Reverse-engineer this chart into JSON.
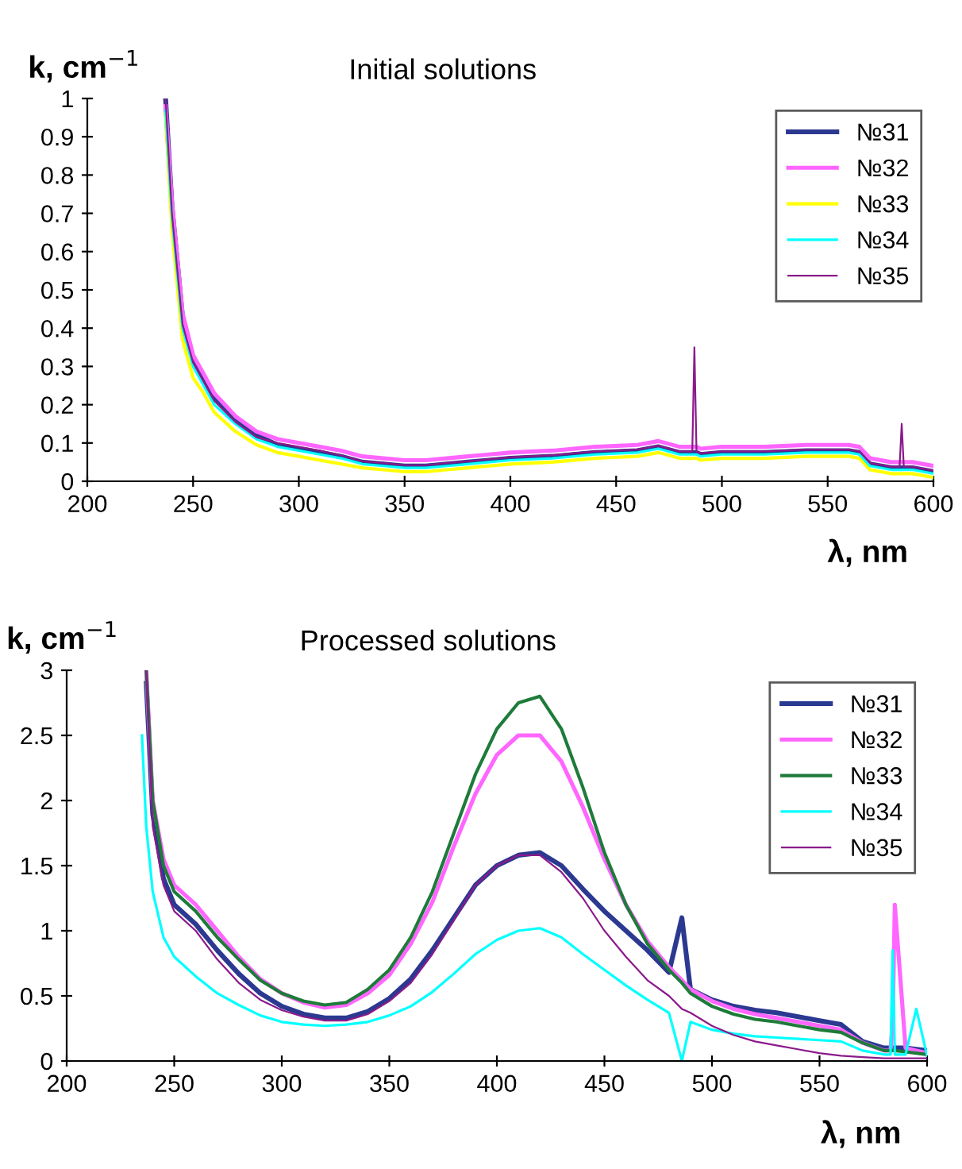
{
  "chart_data": [
    {
      "type": "line",
      "title": "Initial solutions",
      "xlabel": "λ, nm",
      "ylabel": "k, cm$^{−1}$",
      "xlim": [
        200,
        600
      ],
      "ylim": [
        0,
        1
      ],
      "xticks": [
        200,
        250,
        300,
        350,
        400,
        450,
        500,
        550,
        600
      ],
      "yticks": [
        0,
        0.1,
        0.2,
        0.3,
        0.4,
        0.5,
        0.6,
        0.7,
        0.8,
        0.9,
        1
      ],
      "grid": false,
      "legend": "top right",
      "marker": "none",
      "line_style": "solid",
      "x": [
        237,
        240,
        245,
        250,
        255,
        260,
        270,
        280,
        290,
        300,
        310,
        320,
        330,
        340,
        350,
        360,
        370,
        380,
        390,
        400,
        420,
        440,
        460,
        470,
        480,
        486,
        487,
        488,
        490,
        500,
        520,
        540,
        560,
        565,
        570,
        580,
        584,
        585,
        586,
        590,
        600
      ],
      "series": [
        {
          "name": "№31",
          "color": "#2b3990",
          "values": [
            1.0,
            0.72,
            0.43,
            0.32,
            0.27,
            0.22,
            0.16,
            0.12,
            0.095,
            0.085,
            0.075,
            0.065,
            0.05,
            0.045,
            0.04,
            0.04,
            0.045,
            0.05,
            0.055,
            0.06,
            0.065,
            0.075,
            0.08,
            0.09,
            0.075,
            0.075,
            0.075,
            0.075,
            0.07,
            0.075,
            0.075,
            0.08,
            0.08,
            0.075,
            0.045,
            0.035,
            0.035,
            0.035,
            0.035,
            0.035,
            0.025
          ]
        },
        {
          "name": "№32",
          "color": "#ff66ff",
          "values": [
            0.98,
            0.73,
            0.44,
            0.33,
            0.28,
            0.23,
            0.17,
            0.13,
            0.11,
            0.1,
            0.09,
            0.08,
            0.065,
            0.06,
            0.055,
            0.055,
            0.06,
            0.065,
            0.07,
            0.075,
            0.08,
            0.09,
            0.095,
            0.105,
            0.09,
            0.09,
            0.09,
            0.09,
            0.085,
            0.09,
            0.09,
            0.095,
            0.095,
            0.09,
            0.06,
            0.05,
            0.05,
            0.05,
            0.05,
            0.05,
            0.04
          ]
        },
        {
          "name": "№33",
          "color": "#ffff00",
          "values": [
            0.96,
            0.66,
            0.37,
            0.27,
            0.23,
            0.18,
            0.13,
            0.095,
            0.075,
            0.065,
            0.055,
            0.045,
            0.035,
            0.03,
            0.025,
            0.025,
            0.03,
            0.035,
            0.04,
            0.045,
            0.05,
            0.06,
            0.065,
            0.075,
            0.06,
            0.06,
            0.06,
            0.06,
            0.055,
            0.06,
            0.06,
            0.065,
            0.065,
            0.06,
            0.03,
            0.02,
            0.02,
            0.02,
            0.02,
            0.02,
            0.01
          ]
        },
        {
          "name": "№34",
          "color": "#00ffff",
          "values": [
            0.97,
            0.69,
            0.4,
            0.3,
            0.25,
            0.2,
            0.15,
            0.11,
            0.09,
            0.08,
            0.07,
            0.06,
            0.045,
            0.04,
            0.035,
            0.035,
            0.04,
            0.045,
            0.05,
            0.055,
            0.06,
            0.07,
            0.075,
            0.085,
            0.07,
            0.07,
            0.07,
            0.07,
            0.065,
            0.07,
            0.07,
            0.075,
            0.075,
            0.07,
            0.04,
            0.03,
            0.03,
            0.03,
            0.03,
            0.03,
            0.02
          ]
        },
        {
          "name": "№35",
          "color": "#8b1a8b",
          "values": [
            1.0,
            0.7,
            0.41,
            0.31,
            0.26,
            0.21,
            0.155,
            0.115,
            0.1,
            0.09,
            0.08,
            0.068,
            0.052,
            0.048,
            0.042,
            0.042,
            0.048,
            0.052,
            0.058,
            0.063,
            0.068,
            0.078,
            0.083,
            0.093,
            0.078,
            0.078,
            0.35,
            0.078,
            0.073,
            0.078,
            0.078,
            0.083,
            0.083,
            0.078,
            0.048,
            0.038,
            0.038,
            0.15,
            0.038,
            0.038,
            0.028
          ]
        }
      ]
    },
    {
      "type": "line",
      "title": "Processed solutions",
      "xlabel": "λ, nm",
      "ylabel": "k, cm$^{−1}$",
      "xlim": [
        200,
        600
      ],
      "ylim": [
        0,
        3
      ],
      "xticks": [
        200,
        250,
        300,
        350,
        400,
        450,
        500,
        550,
        600
      ],
      "yticks": [
        0,
        0.5,
        1,
        1.5,
        2,
        2.5,
        3
      ],
      "grid": false,
      "legend": "top right",
      "marker": "none",
      "line_style": "solid",
      "x": [
        235,
        237,
        240,
        245,
        250,
        260,
        270,
        280,
        290,
        300,
        310,
        320,
        330,
        340,
        350,
        360,
        370,
        380,
        390,
        400,
        410,
        420,
        430,
        440,
        450,
        460,
        470,
        480,
        486,
        490,
        500,
        510,
        520,
        530,
        540,
        550,
        560,
        570,
        580,
        583,
        584,
        585,
        590,
        595,
        600
      ],
      "series": [
        {
          "name": "№31",
          "color": "#2b3990",
          "values": [
            null,
            2.9,
            1.9,
            1.4,
            1.2,
            1.05,
            0.85,
            0.67,
            0.52,
            0.42,
            0.36,
            0.33,
            0.33,
            0.38,
            0.48,
            0.63,
            0.85,
            1.1,
            1.35,
            1.5,
            1.58,
            1.6,
            1.5,
            1.32,
            1.15,
            1.0,
            0.85,
            0.68,
            1.1,
            0.55,
            0.47,
            0.42,
            0.39,
            0.37,
            0.34,
            0.31,
            0.28,
            0.15,
            0.1,
            0.1,
            0.1,
            0.1,
            0.1,
            0.09,
            0.08
          ]
        },
        {
          "name": "№32",
          "color": "#ff66ff",
          "values": [
            null,
            3.0,
            2.0,
            1.55,
            1.35,
            1.2,
            1.0,
            0.8,
            0.63,
            0.52,
            0.45,
            0.41,
            0.43,
            0.52,
            0.66,
            0.9,
            1.22,
            1.65,
            2.05,
            2.35,
            2.5,
            2.5,
            2.3,
            1.95,
            1.55,
            1.2,
            0.92,
            0.72,
            0.62,
            0.55,
            0.46,
            0.4,
            0.36,
            0.33,
            0.3,
            0.27,
            0.24,
            0.14,
            0.08,
            0.08,
            0.3,
            1.2,
            0.1,
            0.08,
            0.06
          ]
        },
        {
          "name": "№33",
          "color": "#1e7b3a",
          "values": [
            null,
            3.0,
            2.0,
            1.5,
            1.3,
            1.15,
            0.95,
            0.78,
            0.62,
            0.52,
            0.46,
            0.43,
            0.45,
            0.55,
            0.7,
            0.95,
            1.3,
            1.75,
            2.2,
            2.55,
            2.75,
            2.8,
            2.55,
            2.1,
            1.6,
            1.2,
            0.9,
            0.7,
            0.6,
            0.52,
            0.42,
            0.36,
            0.32,
            0.3,
            0.27,
            0.24,
            0.22,
            0.14,
            0.08,
            0.08,
            0.08,
            0.08,
            0.07,
            0.06,
            0.05
          ]
        },
        {
          "name": "№34",
          "color": "#00ffff",
          "values": [
            2.5,
            1.8,
            1.3,
            0.95,
            0.8,
            0.65,
            0.52,
            0.43,
            0.35,
            0.3,
            0.28,
            0.27,
            0.28,
            0.3,
            0.35,
            0.42,
            0.53,
            0.67,
            0.82,
            0.93,
            1.0,
            1.02,
            0.95,
            0.82,
            0.7,
            0.58,
            0.47,
            0.37,
            0.0,
            0.3,
            0.24,
            0.21,
            0.19,
            0.18,
            0.17,
            0.16,
            0.15,
            0.08,
            0.05,
            0.05,
            0.85,
            0.05,
            0.05,
            0.4,
            0.04
          ]
        },
        {
          "name": "№35",
          "color": "#8b1a8b",
          "values": [
            null,
            3.0,
            1.8,
            1.35,
            1.15,
            1.0,
            0.78,
            0.6,
            0.47,
            0.39,
            0.34,
            0.31,
            0.31,
            0.36,
            0.46,
            0.6,
            0.82,
            1.08,
            1.35,
            1.5,
            1.58,
            1.58,
            1.45,
            1.25,
            1.0,
            0.8,
            0.62,
            0.5,
            0.4,
            0.37,
            0.27,
            0.2,
            0.15,
            0.12,
            0.09,
            0.06,
            0.04,
            0.03,
            0.02,
            0.02,
            0.02,
            0.02,
            0.02,
            0.02,
            0.02
          ]
        }
      ]
    }
  ]
}
